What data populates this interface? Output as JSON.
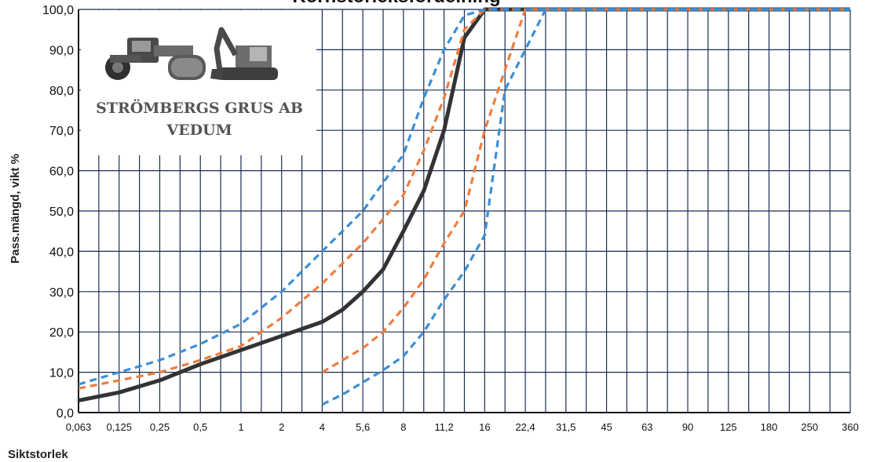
{
  "chart_data": {
    "type": "line",
    "title": "Kornstorleksfördelning",
    "xlabel": "Siktstorlek",
    "ylabel": "Pass.mängd, vikt %",
    "x_scale": "categorical-log",
    "categories": [
      "0,063",
      "0,125",
      "0,25",
      "0,5",
      "1",
      "2",
      "4",
      "5,6",
      "8",
      "11,2",
      "16",
      "22,4",
      "31,5",
      "45",
      "63",
      "90",
      "125",
      "180",
      "250",
      "360"
    ],
    "y_ticks": [
      "0,0",
      "10,0",
      "20,0",
      "30,0",
      "40,0",
      "50,0",
      "60,0",
      "70,0",
      "80,0",
      "90,0",
      "100,0"
    ],
    "ylim": [
      0,
      100
    ],
    "grid": true,
    "legend": "none",
    "series": [
      {
        "color": "#333333",
        "style": "solid",
        "points": [
          [
            0,
            3
          ],
          [
            1,
            5
          ],
          [
            2,
            8
          ],
          [
            3,
            12
          ],
          [
            4,
            15.5
          ],
          [
            5,
            19
          ],
          [
            6,
            22.5
          ],
          [
            6.5,
            25.5
          ],
          [
            7,
            30
          ],
          [
            7.5,
            35.5
          ],
          [
            8,
            45
          ],
          [
            8.5,
            55
          ],
          [
            9,
            70
          ],
          [
            9.5,
            93
          ],
          [
            10,
            100
          ],
          [
            19,
            100
          ]
        ]
      },
      {
        "color": "#ef7d3f",
        "style": "dashed",
        "points": [
          [
            0,
            6
          ],
          [
            1,
            8
          ],
          [
            2,
            10
          ],
          [
            3,
            13
          ],
          [
            4,
            16.5
          ],
          [
            5,
            23.5
          ],
          [
            6,
            32
          ],
          [
            6.5,
            37
          ],
          [
            7,
            42
          ],
          [
            7.5,
            48
          ],
          [
            8,
            54
          ],
          [
            8.5,
            65
          ],
          [
            9,
            78
          ],
          [
            9.5,
            95
          ],
          [
            10,
            100
          ],
          [
            19,
            100
          ]
        ]
      },
      {
        "color": "#ef7d3f",
        "style": "dashed",
        "points": [
          [
            6,
            10
          ],
          [
            6.5,
            13
          ],
          [
            7,
            16
          ],
          [
            7.5,
            20
          ],
          [
            8,
            26
          ],
          [
            8.5,
            33
          ],
          [
            9,
            42
          ],
          [
            9.5,
            50
          ],
          [
            10,
            70
          ],
          [
            10.5,
            85
          ],
          [
            11,
            100
          ],
          [
            19,
            100
          ]
        ]
      },
      {
        "color": "#3b8fd6",
        "style": "dashed",
        "points": [
          [
            0,
            7
          ],
          [
            1,
            10
          ],
          [
            2,
            13
          ],
          [
            3,
            17
          ],
          [
            4,
            22
          ],
          [
            5,
            30
          ],
          [
            6,
            40
          ],
          [
            6.5,
            45
          ],
          [
            7,
            50
          ],
          [
            7.5,
            57
          ],
          [
            8,
            64
          ],
          [
            8.5,
            78
          ],
          [
            9,
            90
          ],
          [
            9.5,
            98.5
          ],
          [
            10,
            100
          ],
          [
            19,
            100
          ]
        ]
      },
      {
        "color": "#3b8fd6",
        "style": "dashed",
        "points": [
          [
            6,
            2
          ],
          [
            6.5,
            4.5
          ],
          [
            7,
            7.5
          ],
          [
            7.5,
            10.5
          ],
          [
            8,
            14
          ],
          [
            8.5,
            20
          ],
          [
            9,
            28
          ],
          [
            9.5,
            35
          ],
          [
            10,
            44
          ],
          [
            10.5,
            80
          ],
          [
            11,
            90
          ],
          [
            11.5,
            100
          ],
          [
            19,
            100
          ]
        ]
      }
    ]
  },
  "logo": {
    "line1": "STRÖMBERGS GRUS AB",
    "line2": "VEDUM"
  },
  "colors": {
    "black_series": "#333333",
    "orange_series": "#ef7d3f",
    "blue_series": "#3b8fd6",
    "grid": "#1a2d55"
  }
}
